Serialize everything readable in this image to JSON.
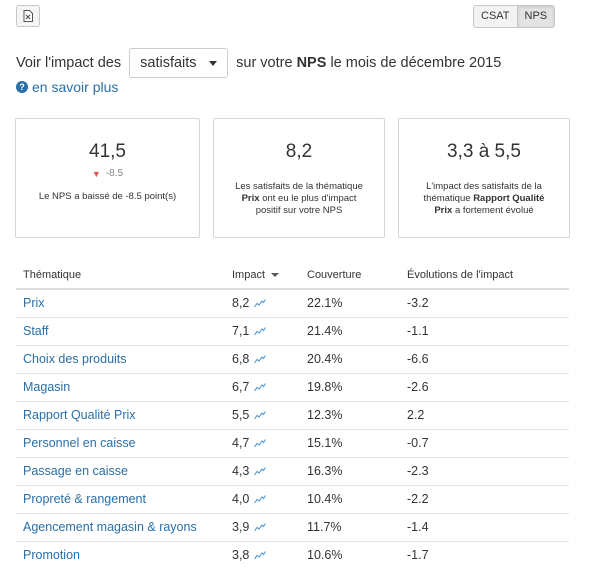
{
  "toolbar": {
    "excel_icon": "excel-export-icon",
    "metric_toggle": {
      "options": [
        "CSAT",
        "NPS"
      ],
      "active": "NPS"
    }
  },
  "sentence": {
    "prefix": "Voir l'impact des",
    "select_value": "satisfaits",
    "middle": "sur votre",
    "metric": "NPS",
    "suffix": "le mois de décembre 2015"
  },
  "learn_more": {
    "icon": "question-circle-icon",
    "label": "en savoir plus"
  },
  "cards": [
    {
      "value": "41,5",
      "delta": "-8.5",
      "description": "Le NPS a baissé de -8.5 point(s)"
    },
    {
      "value": "8,2",
      "desc_pre": "Les satisfaits de la thématique",
      "desc_bold": "Prix",
      "desc_post": "ont eu le plus d'impact positif sur votre NPS"
    },
    {
      "value": "3,3 à 5,5",
      "desc_pre": "L'impact des satisfaits de la thématique",
      "desc_bold": "Rapport Qualité Prix",
      "desc_post": "a fortement évolué"
    }
  ],
  "table": {
    "headers": {
      "theme": "Thématique",
      "impact": "Impact",
      "coverage": "Couverture",
      "evolution": "Évolutions de l'impact"
    },
    "rows": [
      {
        "theme": "Prix",
        "impact": "8,2",
        "coverage": "22.1%",
        "evolution": "-3.2"
      },
      {
        "theme": "Staff",
        "impact": "7,1",
        "coverage": "21.4%",
        "evolution": "-1.1"
      },
      {
        "theme": "Choix des produits",
        "impact": "6,8",
        "coverage": "20.4%",
        "evolution": "-6.6"
      },
      {
        "theme": "Magasin",
        "impact": "6,7",
        "coverage": "19.8%",
        "evolution": "-2.6"
      },
      {
        "theme": "Rapport Qualité Prix",
        "impact": "5,5",
        "coverage": "12.3%",
        "evolution": "2.2"
      },
      {
        "theme": "Personnel en caisse",
        "impact": "4,7",
        "coverage": "15.1%",
        "evolution": "-0.7"
      },
      {
        "theme": "Passage en caisse",
        "impact": "4,3",
        "coverage": "16.3%",
        "evolution": "-2.3"
      },
      {
        "theme": "Propreté & rangement",
        "impact": "4,0",
        "coverage": "10.4%",
        "evolution": "-2.2"
      },
      {
        "theme": "Agencement magasin & rayons",
        "impact": "3,9",
        "coverage": "11.7%",
        "evolution": "-1.4"
      },
      {
        "theme": "Promotion",
        "impact": "3,8",
        "coverage": "10.6%",
        "evolution": "-1.7"
      }
    ]
  },
  "colors": {
    "link": "#2a6fa8",
    "negative": "#d9534f",
    "border": "#d6d6d6"
  }
}
